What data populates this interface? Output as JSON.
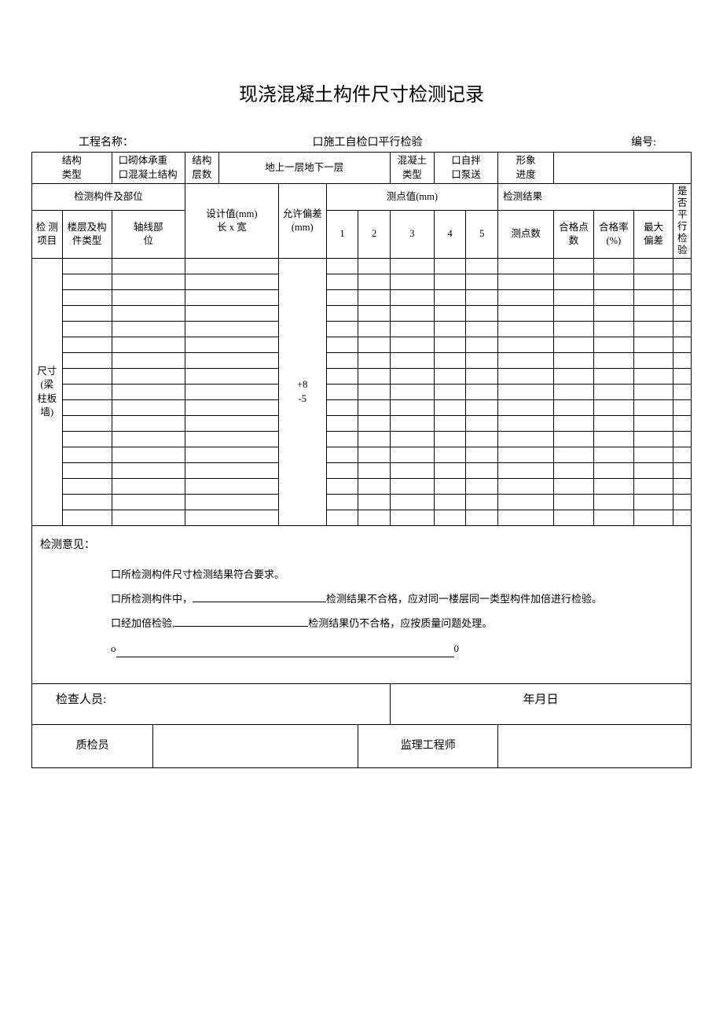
{
  "title": "现浇混凝土构件尺寸检测记录",
  "header": {
    "project_label": "工程名称：",
    "check_type": "口施工自检口平行检验",
    "number_label": "编号:"
  },
  "info": {
    "struct_type_label": "结构\n类型",
    "struct_type_opts": "口砌体承重\n口混凝土结构",
    "struct_floors_label": "结构\n层数",
    "floors_value": "地上一层地下一层",
    "concrete_type_label": "混凝土类型",
    "concrete_opts": "口自拌\n口泵送",
    "progress_label": "形象\n进度"
  },
  "cols": {
    "item": "检 测\n项目",
    "component_pos": "检测构件及部位",
    "floor_type": "楼层及构\n件类型",
    "axis_pos": "轴线部\n位",
    "design_val": "设计值(mm)\n长 x 宽",
    "tolerance": "允许偏差\n(mm)",
    "point_vals": "测点值(mm)",
    "p1": "1",
    "p2": "2",
    "p3": "3",
    "p4": "4",
    "p5": "5",
    "result": "检测结果",
    "point_count": "测点数",
    "pass_count": "合格点\n数",
    "pass_rate": "合格率\n(%)",
    "max_dev": "最大\n偏差",
    "parallel_check": "是\n否\n平\n行\n检\n验"
  },
  "row_label": "尺寸\n(梁\n柱板\n墙)",
  "tolerance_val": "+8\n-5",
  "opinion": {
    "label": "检测意见：",
    "line1": "口所检测构件尺寸检测结果符合要求。",
    "line2a": "口所检测构件中，",
    "line2b": "检测结果不合格，应对同一楼层同一类型构件加倍进行检验。",
    "line3a": "口经加倍检验,",
    "line3b": "检测结果仍不合格，应按质量问题处理。",
    "line4a": "o",
    "line4b": "0"
  },
  "footer": {
    "inspector": "检查人员:",
    "date": "年月日",
    "qc": "质检员",
    "supervisor": "监理工程师"
  },
  "num_data_rows": 17
}
